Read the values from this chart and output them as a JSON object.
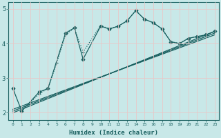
{
  "xlabel": "Humidex (Indice chaleur)",
  "xlim": [
    -0.5,
    23.5
  ],
  "ylim": [
    1.8,
    5.2
  ],
  "yticks": [
    2,
    3,
    4,
    5
  ],
  "xticks": [
    0,
    1,
    2,
    3,
    4,
    5,
    6,
    7,
    8,
    9,
    10,
    11,
    12,
    13,
    14,
    15,
    16,
    17,
    18,
    19,
    20,
    21,
    22,
    23
  ],
  "bg_color": "#c8e8e8",
  "grid_color": "#e8c8c8",
  "line_color": "#1a6060",
  "series": [
    {
      "x": [
        0,
        1,
        3,
        4,
        6,
        7,
        8,
        10,
        11,
        12,
        13,
        14,
        15,
        16,
        17,
        18,
        19,
        20,
        21,
        22,
        23
      ],
      "y": [
        2.7,
        2.05,
        2.6,
        2.7,
        4.3,
        4.45,
        3.55,
        4.5,
        4.42,
        4.5,
        4.65,
        4.95,
        4.7,
        4.6,
        4.42,
        4.05,
        4.0,
        4.15,
        4.2,
        4.25,
        4.35
      ],
      "marker": "D",
      "markersize": 2.5,
      "markerfacecolor": "#1a6060",
      "linestyle": "-",
      "linewidth": 0.9
    },
    {
      "x": [
        1,
        3,
        4,
        5,
        6,
        7,
        8,
        10,
        11,
        12,
        13,
        14,
        15,
        16,
        17,
        18,
        19,
        20,
        21,
        22,
        23
      ],
      "y": [
        2.05,
        2.55,
        2.7,
        3.45,
        4.25,
        4.45,
        3.75,
        4.52,
        4.42,
        4.5,
        4.65,
        4.95,
        4.7,
        4.6,
        4.42,
        4.05,
        4.0,
        4.15,
        4.2,
        4.25,
        4.35
      ],
      "marker": "+",
      "markersize": 3.5,
      "markerfacecolor": "#1a6060",
      "linestyle": ":",
      "linewidth": 0.9
    },
    {
      "x": [
        0,
        23
      ],
      "y": [
        2.0,
        4.35
      ],
      "marker": null,
      "markersize": 0,
      "markerfacecolor": "#1a6060",
      "linestyle": "-",
      "linewidth": 0.9
    },
    {
      "x": [
        0,
        23
      ],
      "y": [
        2.05,
        4.3
      ],
      "marker": null,
      "markersize": 0,
      "markerfacecolor": "#1a6060",
      "linestyle": "-",
      "linewidth": 0.9
    },
    {
      "x": [
        0,
        23
      ],
      "y": [
        2.1,
        4.25
      ],
      "marker": null,
      "markersize": 0,
      "markerfacecolor": "#1a6060",
      "linestyle": "-",
      "linewidth": 0.9
    }
  ]
}
